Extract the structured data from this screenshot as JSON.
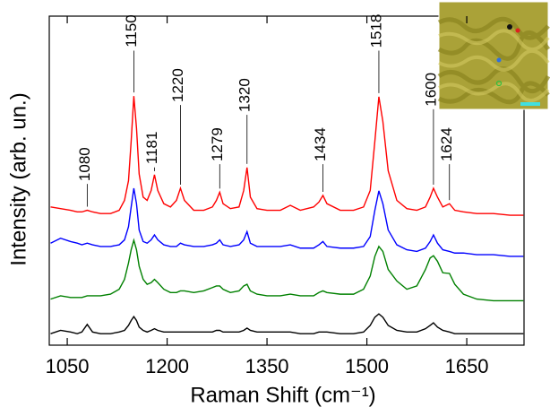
{
  "chart_data": {
    "type": "line",
    "xlabel": "Raman Shift (cm⁻¹)",
    "ylabel": "Intensity (arb. un.)",
    "xlim": [
      1023,
      1736
    ],
    "ylim": [
      0,
      100
    ],
    "xticks": [
      1050,
      1200,
      1350,
      1500,
      1650
    ],
    "x": [
      1025,
      1040,
      1055,
      1065,
      1072,
      1080,
      1088,
      1100,
      1115,
      1128,
      1136,
      1142,
      1146,
      1150,
      1154,
      1158,
      1164,
      1170,
      1176,
      1181,
      1186,
      1195,
      1205,
      1214,
      1220,
      1226,
      1240,
      1255,
      1268,
      1274,
      1279,
      1284,
      1295,
      1308,
      1315,
      1320,
      1325,
      1335,
      1350,
      1370,
      1385,
      1400,
      1420,
      1428,
      1434,
      1440,
      1460,
      1480,
      1495,
      1505,
      1512,
      1518,
      1524,
      1532,
      1545,
      1560,
      1575,
      1588,
      1595,
      1600,
      1606,
      1614,
      1624,
      1632,
      1645,
      1665,
      1690,
      1715,
      1735
    ],
    "series": [
      {
        "color": "#ff0000",
        "values": [
          42,
          41.5,
          41,
          40.5,
          40.5,
          41,
          40.5,
          40,
          40,
          41,
          44,
          50,
          62,
          75.7,
          66,
          52,
          45,
          44,
          47,
          51.8,
          47,
          43,
          42,
          44,
          47.7,
          44,
          41,
          41,
          42,
          44,
          46.5,
          43,
          41.5,
          42,
          47,
          54,
          45,
          41.5,
          41,
          41,
          42.5,
          41,
          42,
          43.5,
          45.5,
          43,
          41,
          41,
          42,
          47,
          62,
          75.5,
          68,
          53,
          44,
          41.5,
          41,
          42,
          45,
          47.7,
          45,
          42,
          43,
          41,
          40.5,
          40,
          40,
          39.5,
          39.5
        ]
      },
      {
        "color": "#0000ff",
        "values": [
          31,
          32.5,
          31.5,
          31,
          30.5,
          31,
          30.5,
          30,
          30,
          30.5,
          32,
          36,
          42,
          47.7,
          43,
          35,
          31.5,
          31,
          32,
          33.5,
          32,
          30.5,
          30,
          30,
          31,
          30.5,
          30,
          30,
          30.5,
          31,
          32,
          30.5,
          30,
          30.5,
          32,
          34.5,
          31,
          30,
          30,
          30,
          30.5,
          29.5,
          29.5,
          30.5,
          31.5,
          30,
          29.5,
          29.5,
          30,
          33,
          41,
          46.9,
          43,
          35,
          30.5,
          29,
          28.5,
          29.5,
          31.5,
          33.5,
          31,
          29,
          28.5,
          28,
          28,
          27.5,
          27.5,
          27,
          27
        ]
      },
      {
        "color": "#008000",
        "values": [
          14,
          15,
          14.5,
          14.5,
          14.5,
          15,
          15,
          15,
          15.5,
          17,
          20,
          25,
          29,
          31.9,
          29,
          24,
          20,
          18.5,
          19,
          20,
          19,
          17,
          16,
          16,
          16.5,
          16.5,
          16,
          16.5,
          17.5,
          18,
          18,
          17,
          16,
          16.5,
          18,
          18.5,
          16.5,
          15.5,
          15,
          15,
          15.5,
          15,
          15,
          16,
          16.5,
          16,
          15.5,
          15.5,
          17,
          21,
          27,
          30,
          28.5,
          23,
          19.5,
          17,
          18,
          23,
          26.5,
          27.2,
          25.5,
          22,
          21.8,
          18.5,
          15.5,
          14,
          13.5,
          13.5,
          13.5
        ]
      },
      {
        "color": "#000000",
        "values": [
          3.5,
          4.5,
          4,
          3.5,
          4,
          6.3,
          4,
          3.5,
          3.5,
          4,
          4.5,
          6,
          7.5,
          8.7,
          7.5,
          5.5,
          4.5,
          4,
          4.5,
          5,
          4.5,
          4,
          4,
          4,
          4,
          4,
          4,
          4,
          4,
          4.5,
          4.5,
          4,
          4,
          4,
          4.5,
          5.2,
          4.5,
          4,
          4,
          4,
          4,
          3.5,
          3.5,
          4,
          4,
          4,
          3.5,
          3.5,
          4,
          6,
          8.5,
          9.5,
          8.5,
          6,
          4.5,
          4,
          4,
          5,
          6,
          6.8,
          5.5,
          4.5,
          4,
          3.5,
          3.5,
          3.5,
          3.5,
          3.5,
          3.5
        ]
      }
    ],
    "annotations": [
      {
        "text": "1080",
        "x": 1080,
        "y": 55
      },
      {
        "text": "1150",
        "x": 1150,
        "y": 95.5
      },
      {
        "text": "1181",
        "x": 1181,
        "y": 60
      },
      {
        "text": "1220",
        "x": 1220,
        "y": 79
      },
      {
        "text": "1279",
        "x": 1279,
        "y": 61
      },
      {
        "text": "1320",
        "x": 1320,
        "y": 76
      },
      {
        "text": "1434",
        "x": 1434,
        "y": 61
      },
      {
        "text": "1518",
        "x": 1518,
        "y": 95.5
      },
      {
        "text": "1600",
        "x": 1600,
        "y": 77.7
      },
      {
        "text": "1624",
        "x": 1624,
        "y": 61
      }
    ]
  }
}
